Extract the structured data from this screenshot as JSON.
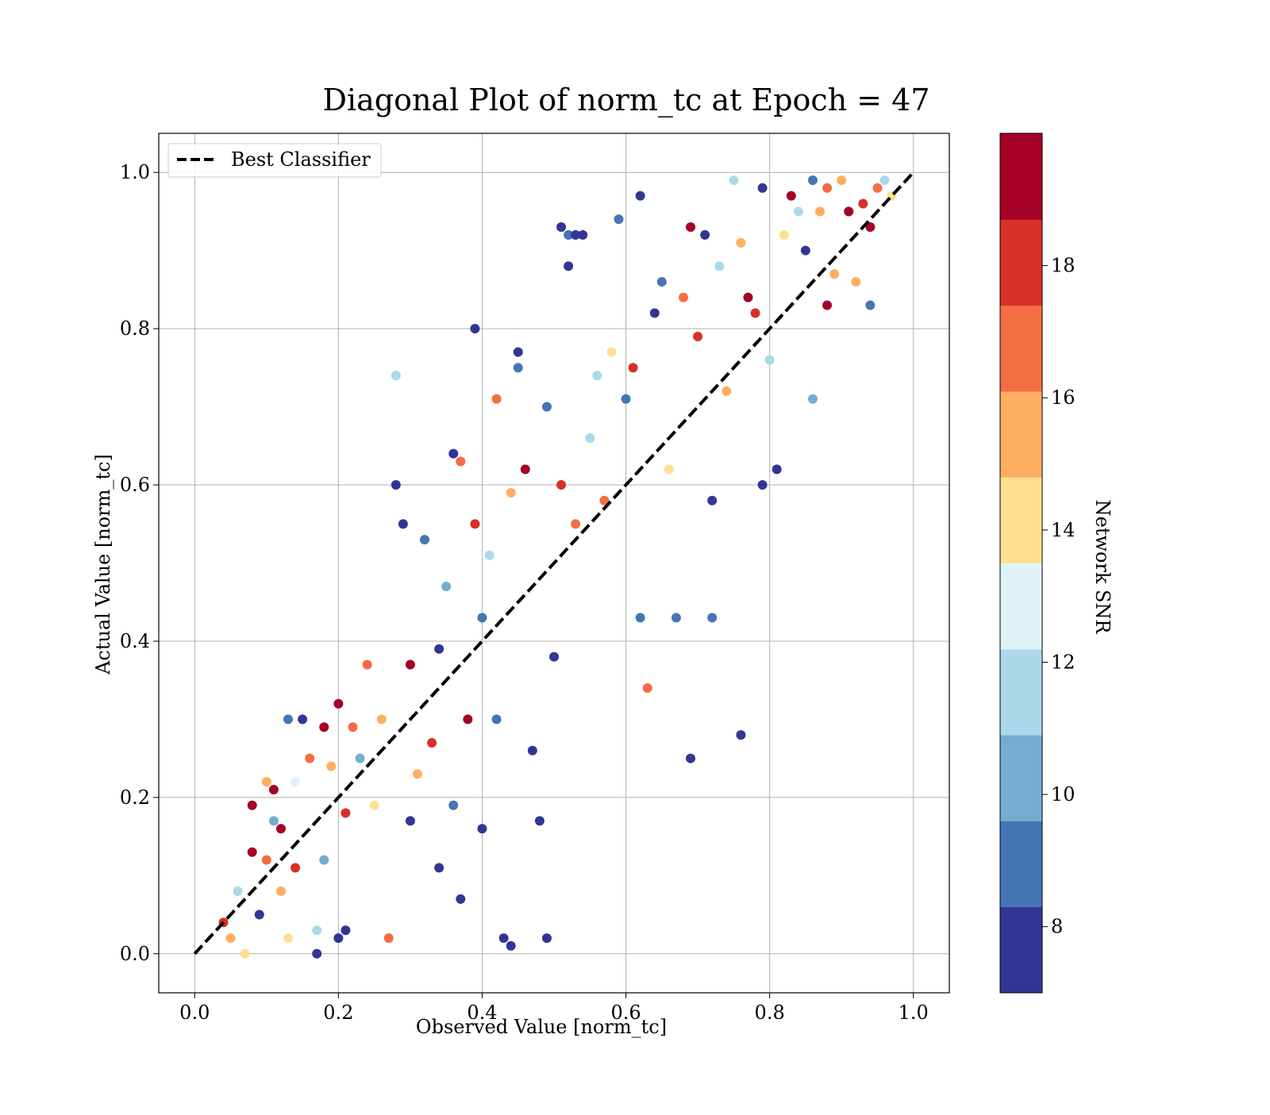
{
  "chart_data": {
    "type": "scatter",
    "title": "Diagonal Plot of norm_tc at Epoch = 47",
    "xlabel": "Observed Value [norm_tc]",
    "ylabel": "Actual Value [norm_tc]",
    "xlim": [
      -0.05,
      1.05
    ],
    "ylim": [
      -0.05,
      1.05
    ],
    "xticks": [
      "0.0",
      "0.2",
      "0.4",
      "0.6",
      "0.8",
      "1.0"
    ],
    "yticks": [
      "0.0",
      "0.2",
      "0.4",
      "0.6",
      "0.8",
      "1.0"
    ],
    "grid": true,
    "legend": {
      "position": "upper-left",
      "entries": [
        "Best Classifier"
      ]
    },
    "reference_line": {
      "name": "Best Classifier",
      "style": "dashed",
      "color": "#000000",
      "from": [
        0,
        0
      ],
      "to": [
        1,
        1
      ]
    },
    "colorbar": {
      "label": "Network SNR",
      "range": [
        7,
        20
      ],
      "ticks": [
        "8",
        "10",
        "12",
        "14",
        "16",
        "18"
      ],
      "colors": [
        "#313695",
        "#4575b4",
        "#74add1",
        "#abd9e9",
        "#e0f3f8",
        "#fee090",
        "#fdae61",
        "#f46d43",
        "#d73027",
        "#a50026"
      ]
    },
    "points": [
      [
        0.04,
        0.04,
        18
      ],
      [
        0.05,
        0.02,
        15
      ],
      [
        0.06,
        0.08,
        12
      ],
      [
        0.07,
        0.0,
        14
      ],
      [
        0.08,
        0.13,
        19
      ],
      [
        0.08,
        0.19,
        19
      ],
      [
        0.09,
        0.05,
        8
      ],
      [
        0.1,
        0.12,
        17
      ],
      [
        0.1,
        0.22,
        15
      ],
      [
        0.11,
        0.17,
        10
      ],
      [
        0.11,
        0.21,
        19
      ],
      [
        0.12,
        0.16,
        19
      ],
      [
        0.12,
        0.08,
        16
      ],
      [
        0.13,
        0.3,
        9
      ],
      [
        0.13,
        0.02,
        14
      ],
      [
        0.14,
        0.11,
        18
      ],
      [
        0.14,
        0.22,
        13
      ],
      [
        0.15,
        0.3,
        8
      ],
      [
        0.16,
        0.25,
        17
      ],
      [
        0.17,
        0.03,
        11
      ],
      [
        0.17,
        0.0,
        8
      ],
      [
        0.18,
        0.29,
        19
      ],
      [
        0.18,
        0.12,
        10
      ],
      [
        0.19,
        0.24,
        16
      ],
      [
        0.2,
        0.32,
        19
      ],
      [
        0.2,
        0.02,
        8
      ],
      [
        0.21,
        0.18,
        18
      ],
      [
        0.21,
        0.03,
        8
      ],
      [
        0.22,
        0.29,
        17
      ],
      [
        0.23,
        0.25,
        10
      ],
      [
        0.24,
        0.37,
        17
      ],
      [
        0.25,
        0.19,
        14
      ],
      [
        0.26,
        0.3,
        16
      ],
      [
        0.27,
        0.02,
        17
      ],
      [
        0.28,
        0.6,
        8
      ],
      [
        0.28,
        0.74,
        12
      ],
      [
        0.29,
        0.55,
        8
      ],
      [
        0.3,
        0.17,
        8
      ],
      [
        0.3,
        0.37,
        19
      ],
      [
        0.31,
        0.23,
        15
      ],
      [
        0.32,
        0.53,
        9
      ],
      [
        0.33,
        0.27,
        18
      ],
      [
        0.34,
        0.11,
        8
      ],
      [
        0.34,
        0.39,
        8
      ],
      [
        0.35,
        0.47,
        10
      ],
      [
        0.36,
        0.64,
        8
      ],
      [
        0.36,
        0.19,
        9
      ],
      [
        0.37,
        0.63,
        17
      ],
      [
        0.37,
        0.07,
        8
      ],
      [
        0.38,
        0.3,
        19
      ],
      [
        0.39,
        0.8,
        8
      ],
      [
        0.39,
        0.55,
        18
      ],
      [
        0.4,
        0.16,
        8
      ],
      [
        0.4,
        0.43,
        9
      ],
      [
        0.41,
        0.51,
        12
      ],
      [
        0.42,
        0.71,
        17
      ],
      [
        0.42,
        0.3,
        9
      ],
      [
        0.43,
        0.02,
        8
      ],
      [
        0.44,
        0.01,
        8
      ],
      [
        0.44,
        0.59,
        16
      ],
      [
        0.45,
        0.77,
        8
      ],
      [
        0.45,
        0.75,
        9
      ],
      [
        0.46,
        0.62,
        19
      ],
      [
        0.47,
        0.26,
        8
      ],
      [
        0.48,
        0.17,
        8
      ],
      [
        0.49,
        0.02,
        8
      ],
      [
        0.49,
        0.7,
        9
      ],
      [
        0.5,
        0.38,
        8
      ],
      [
        0.51,
        0.93,
        8
      ],
      [
        0.51,
        0.6,
        18
      ],
      [
        0.52,
        0.88,
        8
      ],
      [
        0.52,
        0.92,
        9
      ],
      [
        0.53,
        0.92,
        8
      ],
      [
        0.53,
        0.55,
        17
      ],
      [
        0.54,
        0.92,
        8
      ],
      [
        0.55,
        0.66,
        12
      ],
      [
        0.56,
        0.74,
        12
      ],
      [
        0.57,
        0.58,
        17
      ],
      [
        0.58,
        0.77,
        14
      ],
      [
        0.59,
        0.94,
        9
      ],
      [
        0.6,
        0.71,
        9
      ],
      [
        0.61,
        0.75,
        18
      ],
      [
        0.62,
        0.97,
        8
      ],
      [
        0.62,
        0.43,
        9
      ],
      [
        0.63,
        0.34,
        17
      ],
      [
        0.64,
        0.82,
        8
      ],
      [
        0.65,
        0.86,
        9
      ],
      [
        0.66,
        0.62,
        14
      ],
      [
        0.67,
        0.43,
        9
      ],
      [
        0.68,
        0.84,
        17
      ],
      [
        0.69,
        0.93,
        19
      ],
      [
        0.69,
        0.25,
        8
      ],
      [
        0.7,
        0.79,
        18
      ],
      [
        0.71,
        0.92,
        8
      ],
      [
        0.72,
        0.58,
        8
      ],
      [
        0.72,
        0.43,
        9
      ],
      [
        0.73,
        0.88,
        11
      ],
      [
        0.74,
        0.72,
        15
      ],
      [
        0.75,
        0.99,
        11
      ],
      [
        0.76,
        0.28,
        8
      ],
      [
        0.76,
        0.91,
        16
      ],
      [
        0.77,
        0.84,
        19
      ],
      [
        0.78,
        0.82,
        18
      ],
      [
        0.79,
        0.6,
        8
      ],
      [
        0.79,
        0.98,
        8
      ],
      [
        0.8,
        0.76,
        12
      ],
      [
        0.81,
        0.62,
        8
      ],
      [
        0.82,
        0.92,
        14
      ],
      [
        0.83,
        0.97,
        19
      ],
      [
        0.84,
        0.95,
        12
      ],
      [
        0.85,
        0.9,
        8
      ],
      [
        0.86,
        0.99,
        9
      ],
      [
        0.86,
        0.71,
        10
      ],
      [
        0.87,
        0.95,
        15
      ],
      [
        0.88,
        0.83,
        19
      ],
      [
        0.88,
        0.98,
        17
      ],
      [
        0.89,
        0.87,
        16
      ],
      [
        0.9,
        0.99,
        15
      ],
      [
        0.91,
        0.95,
        19
      ],
      [
        0.92,
        0.86,
        16
      ],
      [
        0.93,
        0.96,
        18
      ],
      [
        0.94,
        0.83,
        9
      ],
      [
        0.94,
        0.93,
        19
      ],
      [
        0.95,
        0.98,
        17
      ],
      [
        0.96,
        0.99,
        11
      ],
      [
        0.97,
        0.97,
        14
      ]
    ]
  }
}
